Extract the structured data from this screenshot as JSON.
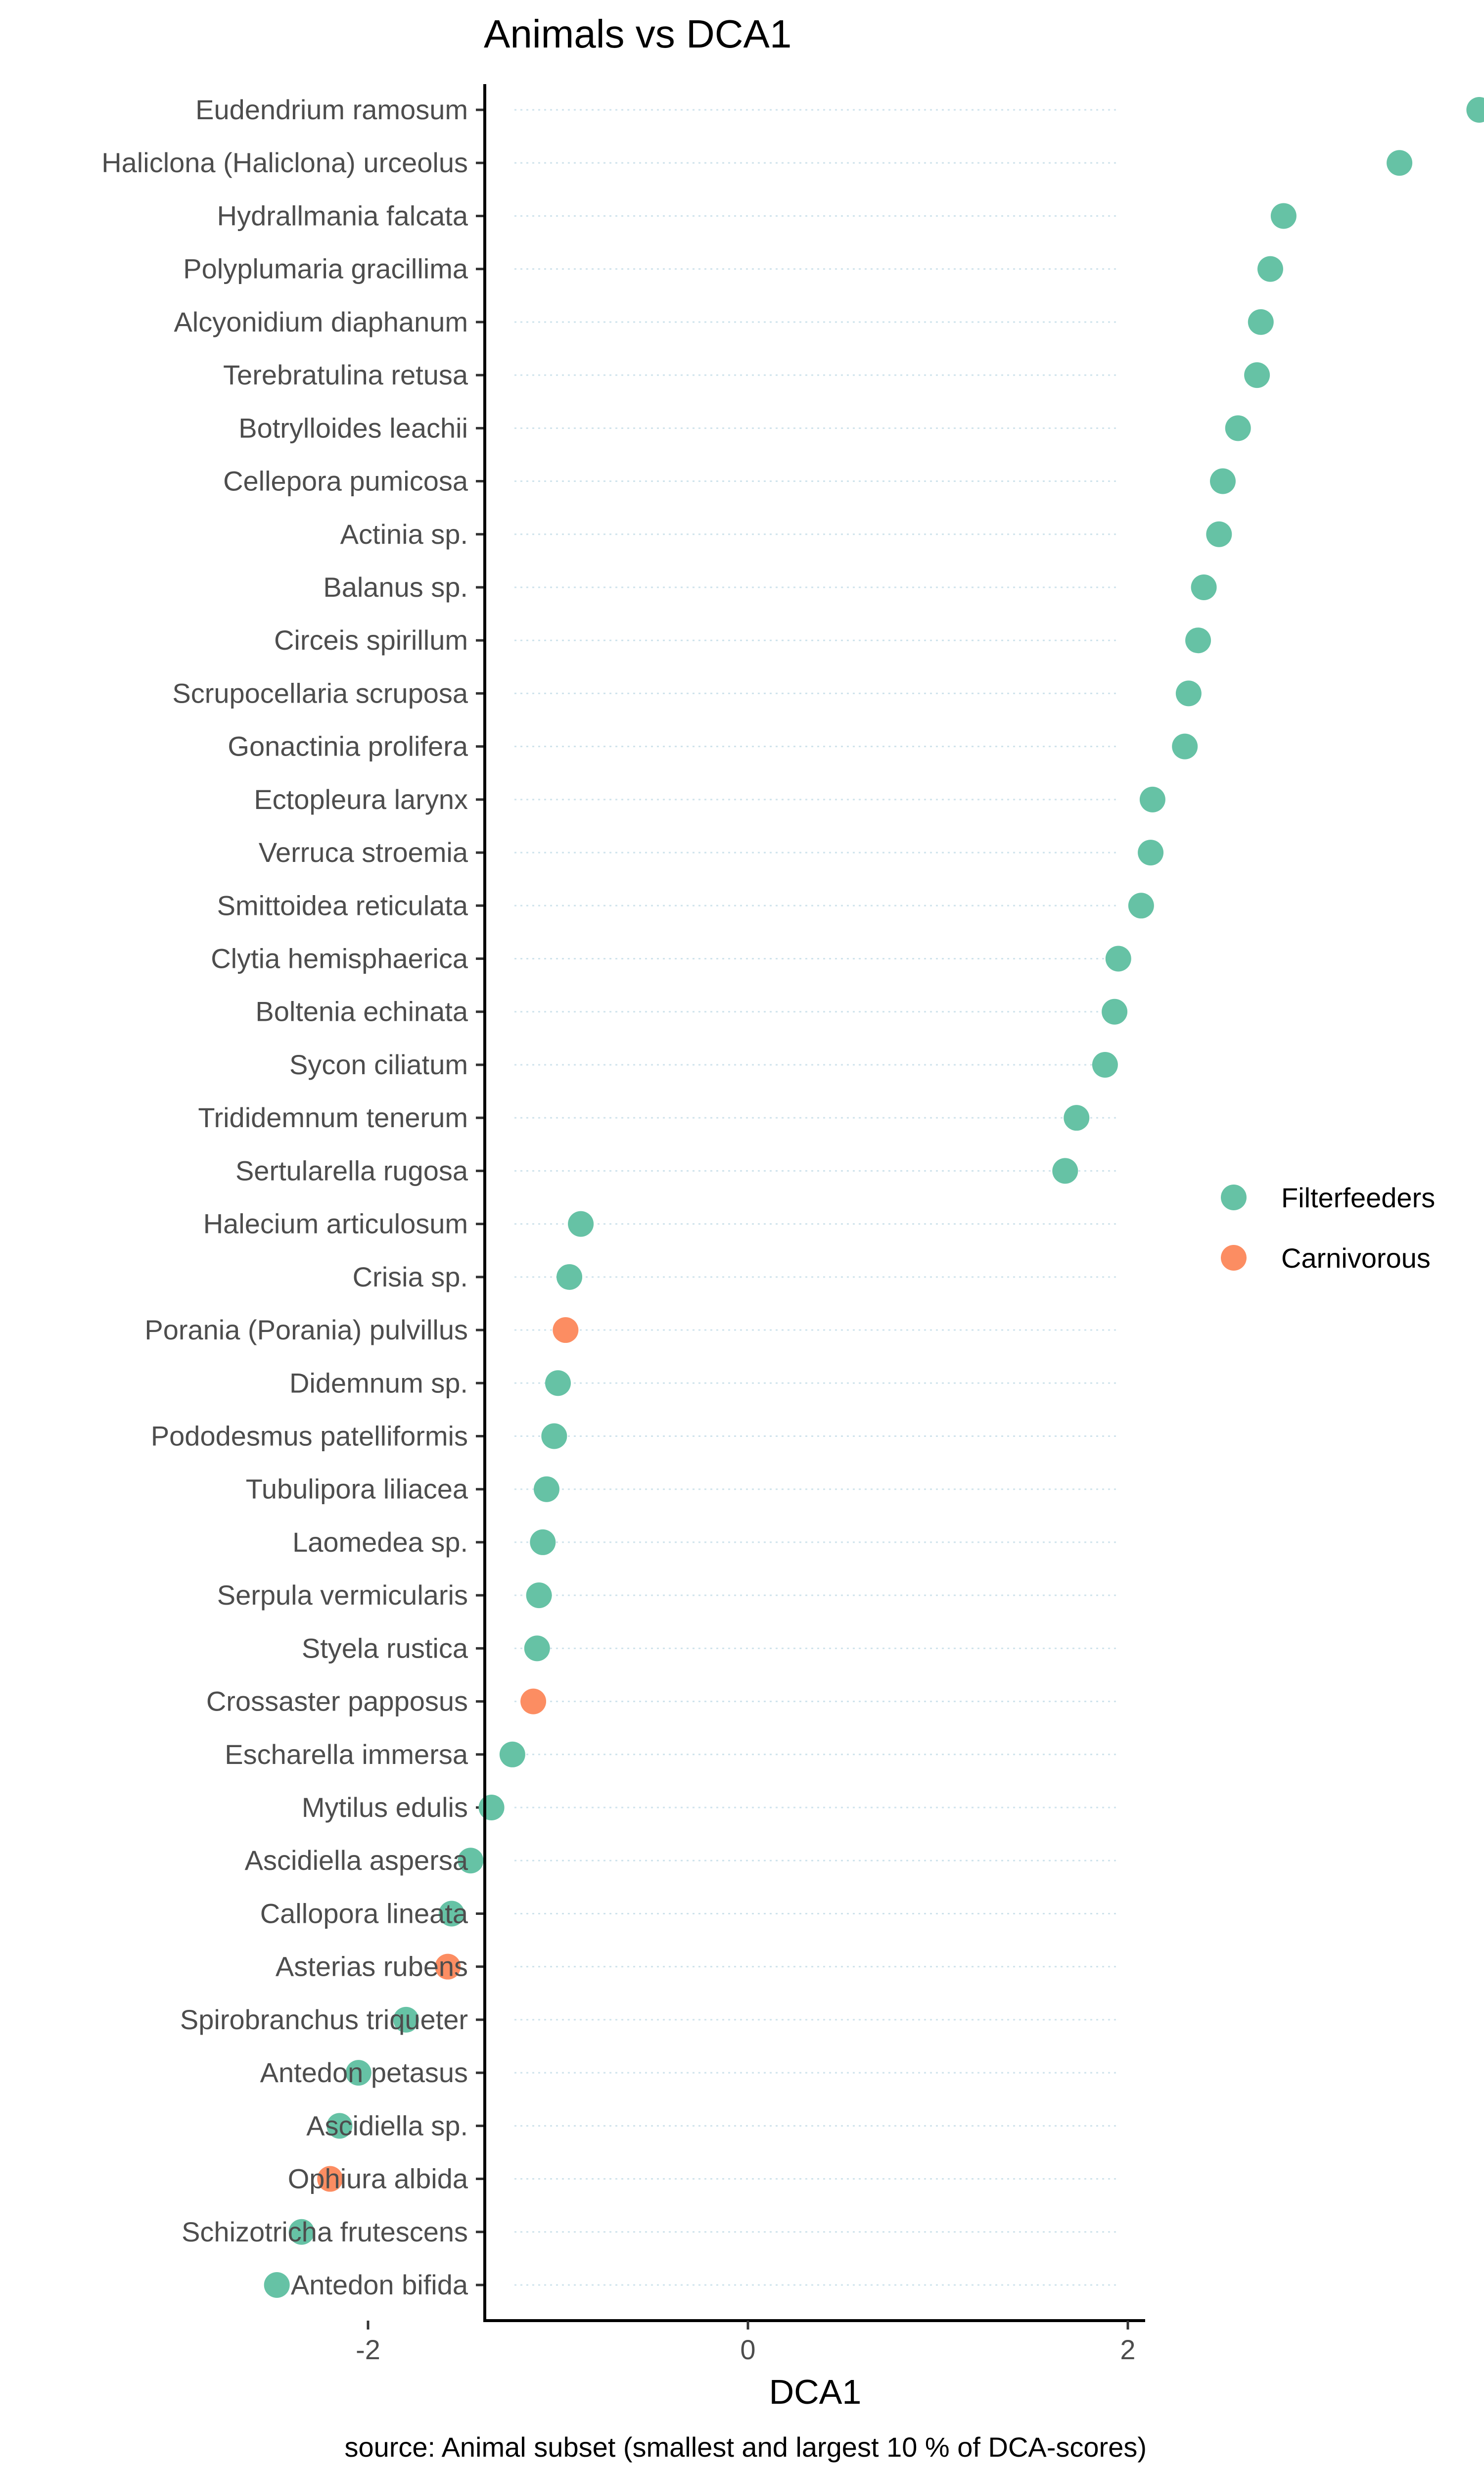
{
  "chart_data": {
    "type": "scatter",
    "title": "Animals vs DCA1",
    "xlabel": "DCA1",
    "ylabel": "",
    "caption": "source: Animal subset (smallest and largest 10 % of DCA-scores)",
    "xlim": [
      -2.8,
      4.15
    ],
    "xticks": [
      -2,
      0,
      2,
      4
    ],
    "grid": "horizontal-dotted",
    "legend_position": "right",
    "legend": [
      {
        "name": "Filterfeeders",
        "color": "#66C2A5"
      },
      {
        "name": "Carnivorous",
        "color": "#FC8D62"
      }
    ],
    "points": [
      {
        "label": "Eudendrium ramosum",
        "x": 3.85,
        "group": "Filterfeeders"
      },
      {
        "label": "Haliclona (Haliclona) urceolus",
        "x": 3.43,
        "group": "Filterfeeders"
      },
      {
        "label": "Hydrallmania falcata",
        "x": 2.82,
        "group": "Filterfeeders"
      },
      {
        "label": "Polyplumaria gracillima",
        "x": 2.75,
        "group": "Filterfeeders"
      },
      {
        "label": "Alcyonidium diaphanum",
        "x": 2.7,
        "group": "Filterfeeders"
      },
      {
        "label": "Terebratulina retusa",
        "x": 2.68,
        "group": "Filterfeeders"
      },
      {
        "label": "Botrylloides leachii",
        "x": 2.58,
        "group": "Filterfeeders"
      },
      {
        "label": "Cellepora pumicosa",
        "x": 2.5,
        "group": "Filterfeeders"
      },
      {
        "label": "Actinia sp.",
        "x": 2.48,
        "group": "Filterfeeders"
      },
      {
        "label": "Balanus sp.",
        "x": 2.4,
        "group": "Filterfeeders"
      },
      {
        "label": "Circeis spirillum",
        "x": 2.37,
        "group": "Filterfeeders"
      },
      {
        "label": "Scrupocellaria scruposa",
        "x": 2.32,
        "group": "Filterfeeders"
      },
      {
        "label": "Gonactinia prolifera",
        "x": 2.3,
        "group": "Filterfeeders"
      },
      {
        "label": "Ectopleura larynx",
        "x": 2.13,
        "group": "Filterfeeders"
      },
      {
        "label": "Verruca stroemia",
        "x": 2.12,
        "group": "Filterfeeders"
      },
      {
        "label": "Smittoidea reticulata",
        "x": 2.07,
        "group": "Filterfeeders"
      },
      {
        "label": "Clytia hemisphaerica",
        "x": 1.95,
        "group": "Filterfeeders"
      },
      {
        "label": "Boltenia echinata",
        "x": 1.93,
        "group": "Filterfeeders"
      },
      {
        "label": "Sycon ciliatum",
        "x": 1.88,
        "group": "Filterfeeders"
      },
      {
        "label": "Trididemnum tenerum",
        "x": 1.73,
        "group": "Filterfeeders"
      },
      {
        "label": "Sertularella rugosa",
        "x": 1.67,
        "group": "Filterfeeders"
      },
      {
        "label": "Halecium articulosum",
        "x": -0.88,
        "group": "Filterfeeders"
      },
      {
        "label": "Crisia sp.",
        "x": -0.94,
        "group": "Filterfeeders"
      },
      {
        "label": "Porania (Porania) pulvillus",
        "x": -0.96,
        "group": "Carnivorous"
      },
      {
        "label": "Didemnum sp.",
        "x": -1.0,
        "group": "Filterfeeders"
      },
      {
        "label": "Pododesmus patelliformis",
        "x": -1.02,
        "group": "Filterfeeders"
      },
      {
        "label": "Tubulipora liliacea",
        "x": -1.06,
        "group": "Filterfeeders"
      },
      {
        "label": "Laomedea sp.",
        "x": -1.08,
        "group": "Filterfeeders"
      },
      {
        "label": "Serpula vermicularis",
        "x": -1.1,
        "group": "Filterfeeders"
      },
      {
        "label": "Styela rustica",
        "x": -1.11,
        "group": "Filterfeeders"
      },
      {
        "label": "Crossaster papposus",
        "x": -1.13,
        "group": "Carnivorous"
      },
      {
        "label": "Escharella immersa",
        "x": -1.24,
        "group": "Filterfeeders"
      },
      {
        "label": "Mytilus edulis",
        "x": -1.35,
        "group": "Filterfeeders"
      },
      {
        "label": "Ascidiella aspersa",
        "x": -1.46,
        "group": "Filterfeeders"
      },
      {
        "label": "Callopora lineata",
        "x": -1.56,
        "group": "Filterfeeders"
      },
      {
        "label": "Asterias rubens",
        "x": -1.58,
        "group": "Carnivorous"
      },
      {
        "label": "Spirobranchus triqueter",
        "x": -1.8,
        "group": "Filterfeeders"
      },
      {
        "label": "Antedon petasus",
        "x": -2.05,
        "group": "Filterfeeders"
      },
      {
        "label": "Ascidiella sp.",
        "x": -2.15,
        "group": "Filterfeeders"
      },
      {
        "label": "Ophiura albida",
        "x": -2.2,
        "group": "Carnivorous"
      },
      {
        "label": "Schizotricha frutescens",
        "x": -2.35,
        "group": "Filterfeeders"
      },
      {
        "label": "Antedon bifida",
        "x": -2.48,
        "group": "Filterfeeders"
      }
    ]
  }
}
